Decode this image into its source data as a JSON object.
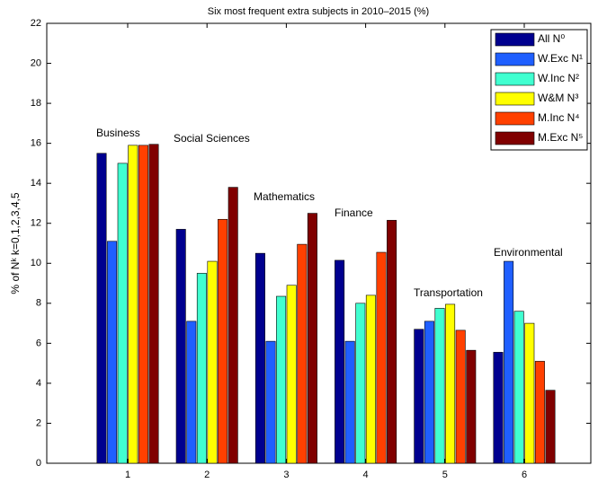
{
  "chart_data": {
    "type": "bar",
    "title": "Six most frequent extra subjects in 2010–2015 (%)",
    "y_label": "% of Nᵏ  k=0,1,2,3,4,5",
    "categories": [
      "1",
      "2",
      "3",
      "4",
      "5",
      "6"
    ],
    "annotations": [
      "Business",
      "Social Sciences",
      "Mathematics",
      "Finance",
      "Transportation",
      "Environmental"
    ],
    "series": [
      {
        "name": "All N⁰",
        "color": "#00008f",
        "values": [
          15.5,
          11.7,
          10.5,
          10.15,
          6.7,
          5.55
        ]
      },
      {
        "name": "W.Exc N¹",
        "color": "#1f5fff",
        "values": [
          11.1,
          7.1,
          6.1,
          6.1,
          7.1,
          10.1
        ]
      },
      {
        "name": "W.Inc N²",
        "color": "#40ffd0",
        "values": [
          15.0,
          9.5,
          8.35,
          8.0,
          7.75,
          7.6
        ]
      },
      {
        "name": "W&M N³",
        "color": "#ffff00",
        "values": [
          15.9,
          10.1,
          8.9,
          8.4,
          7.95,
          7.0
        ]
      },
      {
        "name": "M.Inc N⁴",
        "color": "#ff4000",
        "values": [
          15.9,
          12.2,
          10.95,
          10.55,
          6.65,
          5.1
        ]
      },
      {
        "name": "M.Exc N⁵",
        "color": "#800000",
        "values": [
          15.95,
          13.8,
          12.5,
          12.15,
          5.65,
          3.65
        ]
      }
    ],
    "ylim": [
      0,
      22
    ],
    "yticks": [
      0,
      2,
      4,
      6,
      8,
      10,
      12,
      14,
      16,
      18,
      20,
      22
    ],
    "grid": false,
    "legend": "top-right"
  }
}
